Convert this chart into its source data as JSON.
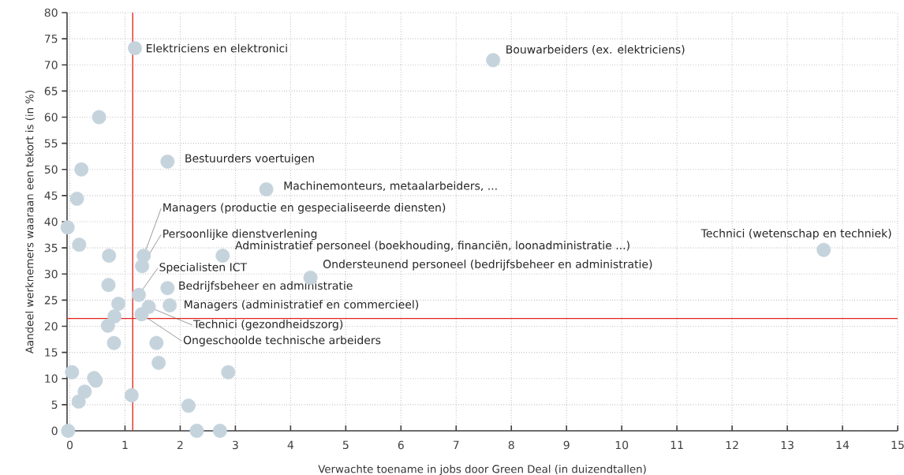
{
  "chart_data": {
    "type": "scatter",
    "xlabel": "Verwachte toename in jobs door Green Deal (in duizendtallen)",
    "ylabel": "Aandeel werknemers waaraan een tekort is (in %)",
    "xlim": [
      -0.05,
      15
    ],
    "ylim": [
      0,
      80
    ],
    "xticks": [
      0,
      1,
      2,
      3,
      4,
      5,
      6,
      7,
      8,
      9,
      10,
      11,
      12,
      13,
      14,
      15
    ],
    "yticks": [
      0,
      5,
      10,
      15,
      20,
      25,
      30,
      35,
      40,
      45,
      50,
      55,
      60,
      65,
      70,
      75,
      80
    ],
    "grid": true,
    "marker": "circle",
    "series": [
      {
        "color": "#c5d3dc",
        "x": [
          1.18,
          7.67,
          0.53,
          1.77,
          0.21,
          0.13,
          3.56,
          -0.04,
          0.17,
          0.71,
          1.34,
          1.31,
          2.77,
          4.36,
          0.7,
          1.77,
          1.25,
          0.88,
          1.81,
          1.43,
          1.3,
          0.81,
          0.69,
          0.8,
          1.57,
          1.61,
          0.04,
          2.87,
          0.44,
          0.47,
          0.27,
          0.16,
          1.12,
          2.15,
          -0.03,
          2.3,
          2.72,
          13.66
        ],
        "values": [
          73.2,
          70.9,
          60,
          51.5,
          50,
          44.4,
          46.2,
          38.9,
          35.6,
          33.5,
          33.5,
          31.5,
          33.5,
          29.3,
          27.9,
          27.3,
          26,
          24.3,
          24,
          23.7,
          22.3,
          21.9,
          20.1,
          16.8,
          16.8,
          13,
          11.2,
          11.2,
          10.1,
          9.6,
          7.5,
          5.6,
          6.8,
          4.8,
          0,
          0,
          0,
          34.6
        ]
      }
    ],
    "ref_lines": [
      {
        "axis": "x",
        "value": 1.14,
        "color": "#e2231a"
      },
      {
        "axis": "y",
        "value": 21.5,
        "color": "#e2231a"
      }
    ],
    "annotations": [
      {
        "text": "Elektriciens en elektronici",
        "x": 1.18,
        "y": 73.2
      },
      {
        "text": "Bouwarbeiders (ex. elektriciens)",
        "x": 7.67,
        "y": 70.9
      },
      {
        "text": "Bestuurders voertuigen",
        "x": 1.77,
        "y": 51.5
      },
      {
        "text": "Machinemonteurs, metaalarbeiders,  ...",
        "x": 3.56,
        "y": 46.2
      },
      {
        "text": "Managers (productie en gespecialiseerde diensten)",
        "x": 1.34,
        "y": 33.5
      },
      {
        "text": "Persoonlijke dienstverlening",
        "x": 1.31,
        "y": 31.5
      },
      {
        "text": "Administratief personeel (boekhouding, financiën, loonadministratie ...)",
        "x": 2.77,
        "y": 33.5
      },
      {
        "text": "Technici (wetenschap en techniek)",
        "x": 13.66,
        "y": 34.6
      },
      {
        "text": "Ondersteunend personeel (bedrijfsbeheer en administratie)",
        "x": 4.36,
        "y": 29.3
      },
      {
        "text": "Specialisten ICT",
        "x": 1.25,
        "y": 26
      },
      {
        "text": "Bedrijfsbeheer en administratie",
        "x": 1.77,
        "y": 27.3
      },
      {
        "text": "Managers (administratief en commercieel)",
        "x": 1.81,
        "y": 24
      },
      {
        "text": "Technici (gezondheidszorg)",
        "x": 1.43,
        "y": 23.7
      },
      {
        "text": "Ongeschoolde technische arbeiders",
        "x": 1.3,
        "y": 22.3
      }
    ]
  }
}
